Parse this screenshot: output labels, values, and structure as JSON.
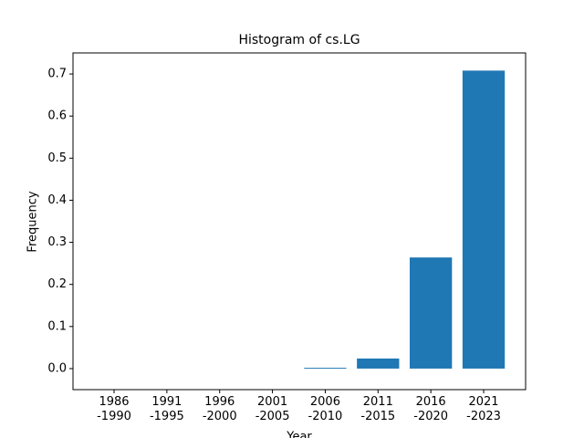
{
  "chart_data": {
    "type": "bar",
    "title": "Histogram of cs.LG",
    "x_label": "Year",
    "y_label": "Frequency",
    "categories": [
      "1986\n-1990",
      "1991\n-1995",
      "1996\n-2000",
      "2001\n-2005",
      "2006\n-2010",
      "2011\n-2015",
      "2016\n-2020",
      "2021\n-2023"
    ],
    "values": [
      0,
      0,
      0,
      0,
      0.002,
      0.024,
      0.264,
      0.708
    ],
    "color": "#1f77b4",
    "ylim": [
      -0.05,
      0.75
    ],
    "yticks": [
      {
        "value": 0,
        "label": "0.0"
      },
      0.1,
      0.2,
      0.3,
      0.4,
      0.5,
      0.6,
      0.7
    ],
    "grid": false
  }
}
